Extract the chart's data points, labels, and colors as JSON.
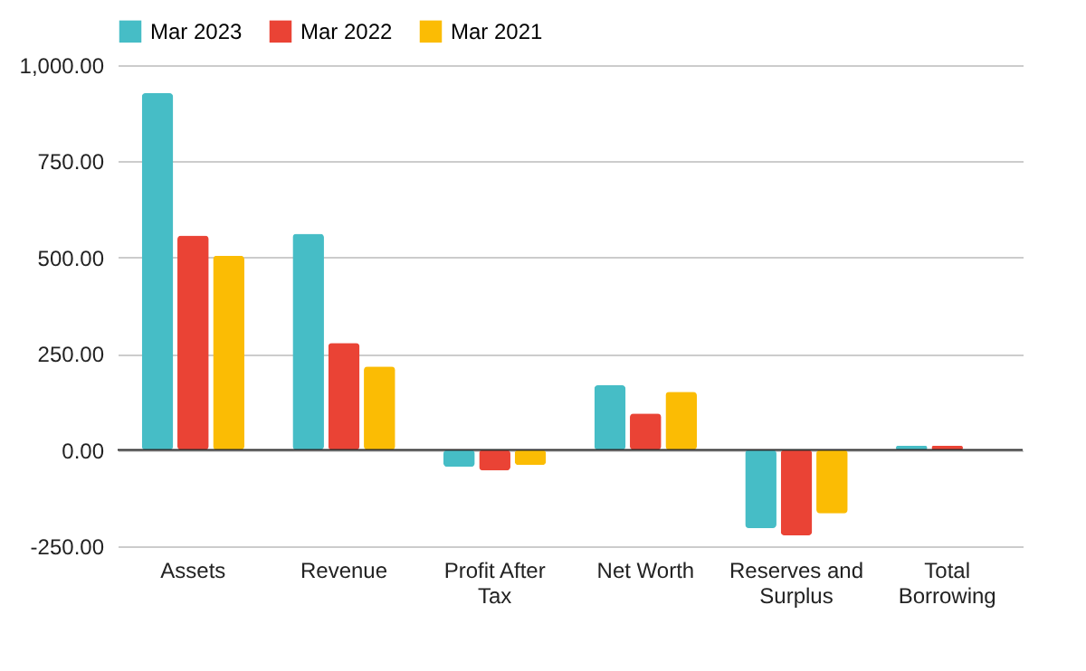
{
  "chart_data": {
    "type": "bar",
    "categories": [
      "Assets",
      "Revenue",
      "Profit After Tax",
      "Net Worth",
      "Reserves and Surplus",
      "Total Borrowing"
    ],
    "series": [
      {
        "name": "Mar 2023",
        "color": "#46bdc6",
        "values": [
          927,
          562,
          -44,
          168,
          -203,
          11
        ]
      },
      {
        "name": "Mar 2022",
        "color": "#ea4335",
        "values": [
          557,
          278,
          -53,
          95,
          -222,
          11
        ]
      },
      {
        "name": "Mar 2021",
        "color": "#fbbc04",
        "values": [
          505,
          217,
          -39,
          151,
          -165,
          null
        ]
      }
    ],
    "ylim": [
      -250,
      1000
    ],
    "yticks": [
      {
        "value": -250,
        "label": "-250.00"
      },
      {
        "value": 0,
        "label": "0.00"
      },
      {
        "value": 250,
        "label": "250.00"
      },
      {
        "value": 500,
        "label": "500.00"
      },
      {
        "value": 750,
        "label": "750.00"
      },
      {
        "value": 1000,
        "label": "1,000.00"
      }
    ],
    "grid": "y",
    "legend": "top"
  }
}
